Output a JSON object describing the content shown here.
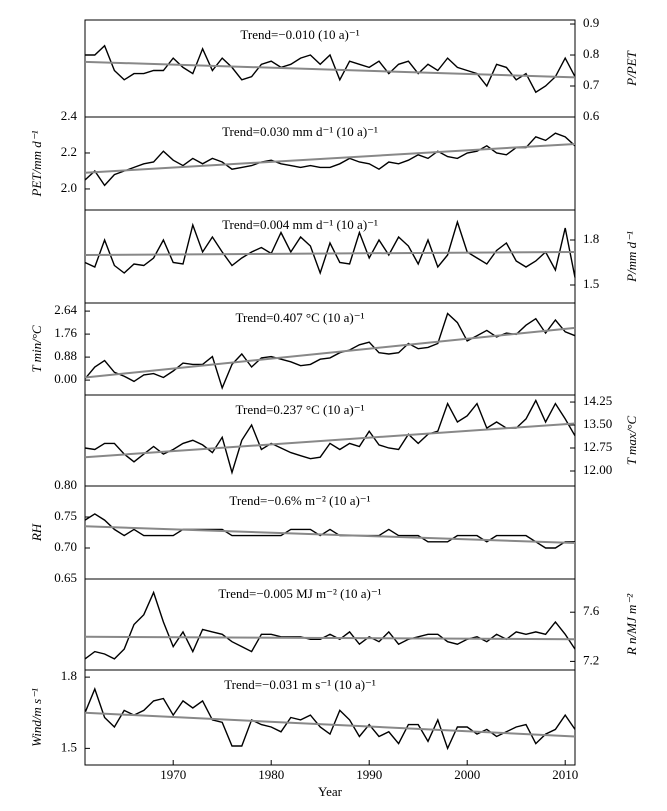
{
  "chart_data": [
    {
      "type": "line",
      "annotation": "Trend=−0.010 (10 a)⁻¹",
      "ylabel": "P/PET",
      "yaxis_side": "right",
      "color": "#000000",
      "trend_color": "#888888",
      "xlim": [
        1961,
        2011
      ],
      "ylim": [
        0.6,
        0.913
      ],
      "yticks": [
        0.9,
        0.8,
        0.7,
        0.6
      ],
      "x": [
        1961,
        1962,
        1963,
        1964,
        1965,
        1966,
        1967,
        1968,
        1969,
        1970,
        1971,
        1972,
        1973,
        1974,
        1975,
        1976,
        1977,
        1978,
        1979,
        1980,
        1981,
        1982,
        1983,
        1984,
        1985,
        1986,
        1987,
        1988,
        1989,
        1990,
        1991,
        1992,
        1993,
        1994,
        1995,
        1996,
        1997,
        1998,
        1999,
        2000,
        2001,
        2002,
        2003,
        2004,
        2005,
        2006,
        2007,
        2008,
        2009,
        2010,
        2011
      ],
      "values": [
        0.8,
        0.8,
        0.83,
        0.75,
        0.72,
        0.74,
        0.74,
        0.75,
        0.75,
        0.79,
        0.76,
        0.74,
        0.82,
        0.75,
        0.79,
        0.76,
        0.72,
        0.73,
        0.77,
        0.78,
        0.76,
        0.77,
        0.79,
        0.8,
        0.77,
        0.8,
        0.72,
        0.78,
        0.77,
        0.76,
        0.78,
        0.74,
        0.77,
        0.78,
        0.74,
        0.77,
        0.75,
        0.79,
        0.76,
        0.75,
        0.74,
        0.7,
        0.77,
        0.76,
        0.72,
        0.74,
        0.68,
        0.7,
        0.73,
        0.79,
        0.73
      ],
      "trend": [
        0.778,
        0.728
      ]
    },
    {
      "type": "line",
      "annotation": "Trend=0.030 mm d⁻¹ (10 a)⁻¹",
      "ylabel": "PET/mm d⁻¹",
      "yaxis_side": "left",
      "color": "#000000",
      "trend_color": "#888888",
      "xlim": [
        1961,
        2011
      ],
      "ylim": [
        1.883,
        2.4
      ],
      "yticks": [
        2.4,
        2.2,
        {
          "value": 2.0,
          "label": "2.0"
        }
      ],
      "x": [
        1961,
        1962,
        1963,
        1964,
        1965,
        1966,
        1967,
        1968,
        1969,
        1970,
        1971,
        1972,
        1973,
        1974,
        1975,
        1976,
        1977,
        1978,
        1979,
        1980,
        1981,
        1982,
        1983,
        1984,
        1985,
        1986,
        1987,
        1988,
        1989,
        1990,
        1991,
        1992,
        1993,
        1994,
        1995,
        1996,
        1997,
        1998,
        1999,
        2000,
        2001,
        2002,
        2003,
        2004,
        2005,
        2006,
        2007,
        2008,
        2009,
        2010,
        2011
      ],
      "values": [
        2.05,
        2.1,
        2.02,
        2.08,
        2.1,
        2.12,
        2.14,
        2.15,
        2.21,
        2.16,
        2.13,
        2.17,
        2.14,
        2.17,
        2.15,
        2.11,
        2.12,
        2.13,
        2.15,
        2.16,
        2.14,
        2.13,
        2.12,
        2.13,
        2.12,
        2.12,
        2.14,
        2.17,
        2.15,
        2.14,
        2.11,
        2.15,
        2.14,
        2.16,
        2.19,
        2.17,
        2.21,
        2.18,
        2.17,
        2.2,
        2.21,
        2.24,
        2.2,
        2.19,
        2.23,
        2.23,
        2.29,
        2.27,
        2.31,
        2.29,
        2.24
      ],
      "trend": [
        2.09,
        2.25
      ]
    },
    {
      "type": "line",
      "annotation": "Trend=0.004 mm d⁻¹ (10 a)⁻¹",
      "ylabel": "P/mm d⁻¹",
      "yaxis_side": "right",
      "color": "#000000",
      "trend_color": "#888888",
      "xlim": [
        1961,
        2011
      ],
      "ylim": [
        1.38,
        2.0
      ],
      "yticks": [
        1.8,
        1.5
      ],
      "x": [
        1961,
        1962,
        1963,
        1964,
        1965,
        1966,
        1967,
        1968,
        1969,
        1970,
        1971,
        1972,
        1973,
        1974,
        1975,
        1976,
        1977,
        1978,
        1979,
        1980,
        1981,
        1982,
        1983,
        1984,
        1985,
        1986,
        1987,
        1988,
        1989,
        1990,
        1991,
        1992,
        1993,
        1994,
        1995,
        1996,
        1997,
        1998,
        1999,
        2000,
        2001,
        2002,
        2003,
        2004,
        2005,
        2006,
        2007,
        2008,
        2009,
        2010,
        2011
      ],
      "values": [
        1.65,
        1.62,
        1.8,
        1.63,
        1.58,
        1.64,
        1.63,
        1.68,
        1.8,
        1.65,
        1.64,
        1.9,
        1.72,
        1.82,
        1.72,
        1.63,
        1.68,
        1.72,
        1.75,
        1.71,
        1.85,
        1.72,
        1.82,
        1.76,
        1.58,
        1.78,
        1.65,
        1.64,
        1.85,
        1.68,
        1.8,
        1.7,
        1.82,
        1.76,
        1.64,
        1.8,
        1.62,
        1.7,
        1.92,
        1.72,
        1.68,
        1.64,
        1.73,
        1.78,
        1.66,
        1.62,
        1.66,
        1.72,
        1.6,
        1.88,
        1.55
      ],
      "trend": [
        1.7,
        1.72
      ]
    },
    {
      "type": "line",
      "annotation": "Trend=0.407 °C (10 a)⁻¹",
      "ylabel": "T min/°C",
      "yaxis_side": "left",
      "color": "#000000",
      "trend_color": "#888888",
      "xlim": [
        1961,
        2011
      ],
      "ylim": [
        -0.57,
        2.95
      ],
      "yticks": [
        2.64,
        1.76,
        0.88,
        {
          "value": 0,
          "label": "0.00"
        }
      ],
      "x": [
        1961,
        1962,
        1963,
        1964,
        1965,
        1966,
        1967,
        1968,
        1969,
        1970,
        1971,
        1972,
        1973,
        1974,
        1975,
        1976,
        1977,
        1978,
        1979,
        1980,
        1981,
        1982,
        1983,
        1984,
        1985,
        1986,
        1987,
        1988,
        1989,
        1990,
        1991,
        1992,
        1993,
        1994,
        1995,
        1996,
        1997,
        1998,
        1999,
        2000,
        2001,
        2002,
        2003,
        2004,
        2005,
        2006,
        2007,
        2008,
        2009,
        2010,
        2011
      ],
      "values": [
        0.05,
        0.5,
        0.75,
        0.3,
        0.15,
        -0.05,
        0.2,
        0.25,
        0.1,
        0.35,
        0.65,
        0.6,
        0.6,
        0.9,
        -0.3,
        0.6,
        1.0,
        0.5,
        0.85,
        0.9,
        0.8,
        0.7,
        0.55,
        0.6,
        0.8,
        0.85,
        1.05,
        1.15,
        1.35,
        1.45,
        1.05,
        1.0,
        1.05,
        1.4,
        1.2,
        1.25,
        1.4,
        2.55,
        2.2,
        1.5,
        1.7,
        1.9,
        1.65,
        1.8,
        1.75,
        2.1,
        2.35,
        1.8,
        2.3,
        1.85,
        1.7
      ],
      "trend": [
        0.1,
        2.0
      ]
    },
    {
      "type": "line",
      "annotation": "Trend=0.237 °C (10 a)⁻¹",
      "ylabel": "T max/°C",
      "yaxis_side": "right",
      "color": "#000000",
      "trend_color": "#888888",
      "xlim": [
        1961,
        2011
      ],
      "ylim": [
        11.51,
        14.48
      ],
      "yticks": [
        14.25,
        {
          "value": 13.5,
          "label": "13.50"
        },
        12.75,
        {
          "value": 12,
          "label": "12.00"
        }
      ],
      "x": [
        1961,
        1962,
        1963,
        1964,
        1965,
        1966,
        1967,
        1968,
        1969,
        1970,
        1971,
        1972,
        1973,
        1974,
        1975,
        1976,
        1977,
        1978,
        1979,
        1980,
        1981,
        1982,
        1983,
        1984,
        1985,
        1986,
        1987,
        1988,
        1989,
        1990,
        1991,
        1992,
        1993,
        1994,
        1995,
        1996,
        1997,
        1998,
        1999,
        2000,
        2001,
        2002,
        2003,
        2004,
        2005,
        2006,
        2007,
        2008,
        2009,
        2010,
        2011
      ],
      "values": [
        12.75,
        12.7,
        12.9,
        12.9,
        12.55,
        12.3,
        12.55,
        12.8,
        12.55,
        12.7,
        12.9,
        13.0,
        12.85,
        12.6,
        13.1,
        11.95,
        13.0,
        13.5,
        12.7,
        12.9,
        12.75,
        12.6,
        12.5,
        12.4,
        12.45,
        12.9,
        12.7,
        12.9,
        12.8,
        13.3,
        12.85,
        12.75,
        12.7,
        13.2,
        12.9,
        13.2,
        13.3,
        14.2,
        13.6,
        13.8,
        14.2,
        13.4,
        13.6,
        13.4,
        13.4,
        13.7,
        14.3,
        13.6,
        14.2,
        13.7,
        13.15
      ],
      "trend": [
        12.45,
        13.55
      ]
    },
    {
      "type": "line",
      "annotation": "Trend=−0.6% m⁻² (10 a)⁻¹",
      "ylabel": "RH",
      "yaxis_side": "left",
      "color": "#000000",
      "trend_color": "#888888",
      "xlim": [
        1961,
        2011
      ],
      "ylim": [
        0.65,
        0.8
      ],
      "yticks": [
        {
          "value": 0.8,
          "label": "0.80"
        },
        0.75,
        {
          "value": 0.7,
          "label": "0.70"
        },
        0.65
      ],
      "x": [
        1961,
        1962,
        1963,
        1964,
        1965,
        1966,
        1967,
        1968,
        1969,
        1970,
        1971,
        1972,
        1973,
        1974,
        1975,
        1976,
        1977,
        1978,
        1979,
        1980,
        1981,
        1982,
        1983,
        1984,
        1985,
        1986,
        1987,
        1988,
        1989,
        1990,
        1991,
        1992,
        1993,
        1994,
        1995,
        1996,
        1997,
        1998,
        1999,
        2000,
        2001,
        2002,
        2003,
        2004,
        2005,
        2006,
        2007,
        2008,
        2009,
        2010,
        2011
      ],
      "values": [
        0.745,
        0.755,
        0.745,
        0.73,
        0.72,
        0.73,
        0.72,
        0.72,
        0.72,
        0.72,
        0.73,
        0.73,
        0.73,
        0.73,
        0.73,
        0.72,
        0.72,
        0.72,
        0.72,
        0.72,
        0.72,
        0.73,
        0.73,
        0.73,
        0.72,
        0.73,
        0.72,
        0.72,
        0.72,
        0.72,
        0.72,
        0.73,
        0.72,
        0.72,
        0.72,
        0.71,
        0.71,
        0.71,
        0.72,
        0.72,
        0.72,
        0.71,
        0.72,
        0.72,
        0.72,
        0.72,
        0.71,
        0.7,
        0.7,
        0.71,
        0.71
      ],
      "trend": [
        0.735,
        0.708
      ]
    },
    {
      "type": "line",
      "annotation": "Trend=−0.005 MJ m⁻² (10 a)⁻¹",
      "ylabel": "R n/MJ m⁻²",
      "yaxis_side": "right",
      "color": "#000000",
      "trend_color": "#888888",
      "xlim": [
        1961,
        2011
      ],
      "ylim": [
        7.13,
        7.87
      ],
      "yticks": [
        7.6,
        7.2
      ],
      "x": [
        1961,
        1962,
        1963,
        1964,
        1965,
        1966,
        1967,
        1968,
        1969,
        1970,
        1971,
        1972,
        1973,
        1974,
        1975,
        1976,
        1977,
        1978,
        1979,
        1980,
        1981,
        1982,
        1983,
        1984,
        1985,
        1986,
        1987,
        1988,
        1989,
        1990,
        1991,
        1992,
        1993,
        1994,
        1995,
        1996,
        1997,
        1998,
        1999,
        2000,
        2001,
        2002,
        2003,
        2004,
        2005,
        2006,
        2007,
        2008,
        2009,
        2010,
        2011
      ],
      "values": [
        7.22,
        7.28,
        7.26,
        7.22,
        7.3,
        7.5,
        7.58,
        7.76,
        7.52,
        7.32,
        7.44,
        7.28,
        7.46,
        7.44,
        7.42,
        7.36,
        7.32,
        7.28,
        7.42,
        7.42,
        7.4,
        7.4,
        7.4,
        7.38,
        7.38,
        7.42,
        7.38,
        7.44,
        7.34,
        7.4,
        7.36,
        7.44,
        7.34,
        7.38,
        7.4,
        7.42,
        7.42,
        7.36,
        7.34,
        7.38,
        7.4,
        7.36,
        7.42,
        7.38,
        7.44,
        7.42,
        7.44,
        7.42,
        7.52,
        7.42,
        7.3
      ],
      "trend": [
        7.4,
        7.38
      ]
    },
    {
      "type": "line",
      "annotation": "Trend=−0.031 m s⁻¹ (10 a)⁻¹",
      "ylabel": "Wind/m s⁻¹",
      "yaxis_side": "left",
      "color": "#000000",
      "trend_color": "#888888",
      "xlim": [
        1961,
        2011
      ],
      "ylim": [
        1.43,
        1.83
      ],
      "yticks": [
        1.8,
        1.5
      ],
      "xlabel": "Year",
      "xticks": [
        1970,
        1980,
        1990,
        2000,
        2010
      ],
      "x": [
        1961,
        1962,
        1963,
        1964,
        1965,
        1966,
        1967,
        1968,
        1969,
        1970,
        1971,
        1972,
        1973,
        1974,
        1975,
        1976,
        1977,
        1978,
        1979,
        1980,
        1981,
        1982,
        1983,
        1984,
        1985,
        1986,
        1987,
        1988,
        1989,
        1990,
        1991,
        1992,
        1993,
        1994,
        1995,
        1996,
        1997,
        1998,
        1999,
        2000,
        2001,
        2002,
        2003,
        2004,
        2005,
        2006,
        2007,
        2008,
        2009,
        2010,
        2011
      ],
      "values": [
        1.65,
        1.75,
        1.63,
        1.59,
        1.66,
        1.64,
        1.66,
        1.7,
        1.71,
        1.64,
        1.7,
        1.67,
        1.7,
        1.62,
        1.61,
        1.51,
        1.51,
        1.62,
        1.6,
        1.59,
        1.57,
        1.63,
        1.62,
        1.64,
        1.59,
        1.56,
        1.66,
        1.62,
        1.55,
        1.6,
        1.55,
        1.57,
        1.52,
        1.6,
        1.6,
        1.53,
        1.62,
        1.5,
        1.59,
        1.59,
        1.56,
        1.58,
        1.55,
        1.57,
        1.59,
        1.6,
        1.52,
        1.56,
        1.58,
        1.64,
        1.58
      ],
      "trend": [
        1.65,
        1.55
      ]
    }
  ]
}
